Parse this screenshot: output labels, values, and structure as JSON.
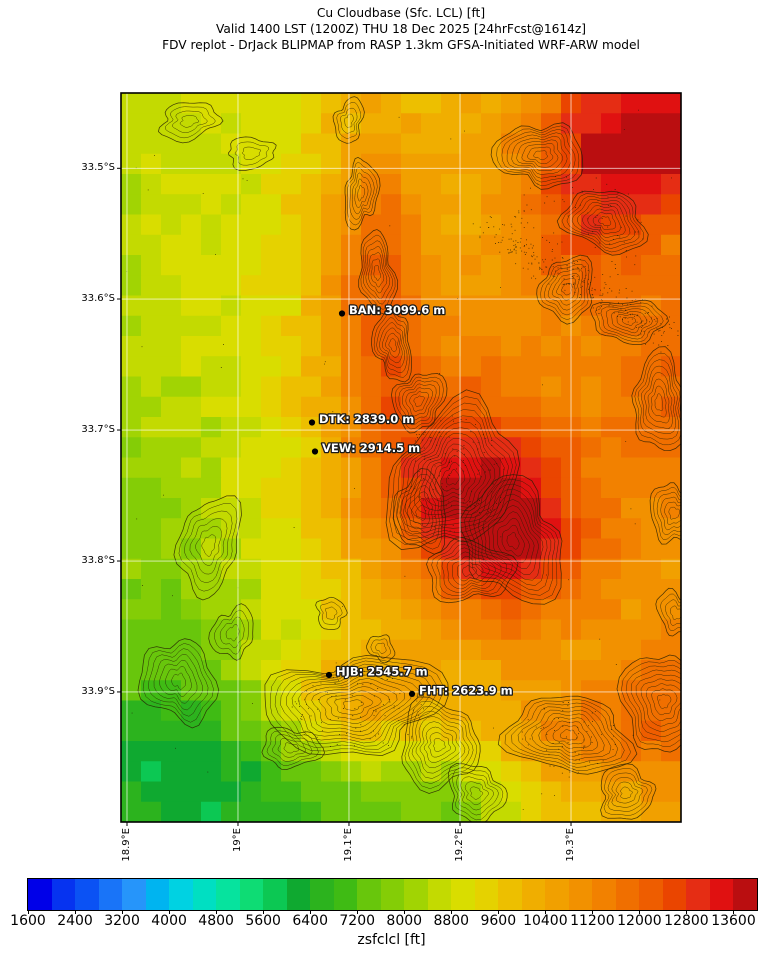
{
  "title": {
    "line1": "Cu Cloudbase (Sfc. LCL) [ft]",
    "line2": "Valid 1400 LST (1200Z) THU 18 Dec 2025 [24hrFcst@1614z]",
    "line3": "FDV replot - DrJack BLIPMAP from RASP 1.3km GFSA-Initiated WRF-ARW model"
  },
  "map": {
    "stations": [
      {
        "code": "BAN",
        "label": "BAN: 3099.6 m",
        "fx": 0.3946,
        "fy": 0.3025
      },
      {
        "code": "DTK",
        "label": "DTK: 2839.0 m",
        "fx": 0.3411,
        "fy": 0.452
      },
      {
        "code": "VEW",
        "label": "VEW: 2914.5 m",
        "fx": 0.3464,
        "fy": 0.4918
      },
      {
        "code": "HJB",
        "label": "HJB: 2545.7 m",
        "fx": 0.3714,
        "fy": 0.7984
      },
      {
        "code": "FHT",
        "label": "FHT: 2623.9 m",
        "fx": 0.5196,
        "fy": 0.8243
      }
    ],
    "lat_ticks": [
      {
        "label": "33.5°S",
        "f": 0.1033
      },
      {
        "label": "33.6°S",
        "f": 0.2826
      },
      {
        "label": "33.7°S",
        "f": 0.4623
      },
      {
        "label": "33.8°S",
        "f": 0.642
      },
      {
        "label": "33.9°S",
        "f": 0.8216
      }
    ],
    "lon_ticks": [
      {
        "label": "18.9°E",
        "f": 0.0107
      },
      {
        "label": "19°E",
        "f": 0.2089
      },
      {
        "label": "19.1°E",
        "f": 0.4071
      },
      {
        "label": "19.2°E",
        "f": 0.6054
      },
      {
        "label": "19.3°E",
        "f": 0.8036
      }
    ]
  },
  "colorbar": {
    "label": "zsfclcl [ft]",
    "min": 1600,
    "max": 14000,
    "step": 400,
    "tick_values": [
      1600,
      2400,
      3200,
      4000,
      4800,
      5600,
      6400,
      7200,
      8000,
      8800,
      9600,
      10400,
      11200,
      12000,
      12800,
      13600
    ],
    "segments": [
      {
        "value": 1600,
        "color": "#0000e8"
      },
      {
        "value": 2000,
        "color": "#0633f0"
      },
      {
        "value": 2400,
        "color": "#0b52f4"
      },
      {
        "value": 2800,
        "color": "#1974f8"
      },
      {
        "value": 3200,
        "color": "#2695fa"
      },
      {
        "value": 3600,
        "color": "#00b4f0"
      },
      {
        "value": 4000,
        "color": "#00d2e2"
      },
      {
        "value": 4400,
        "color": "#00dfc2"
      },
      {
        "value": 4800,
        "color": "#06e39e"
      },
      {
        "value": 5200,
        "color": "#0edc74"
      },
      {
        "value": 5600,
        "color": "#0cc853"
      },
      {
        "value": 6000,
        "color": "#0fa930"
      },
      {
        "value": 6400,
        "color": "#2cb31e",
        "stipple": "s1"
      },
      {
        "value": 6800,
        "color": "#3fbb14"
      },
      {
        "value": 7200,
        "color": "#68c60c"
      },
      {
        "value": 7600,
        "color": "#84cd06"
      },
      {
        "value": 8000,
        "color": "#a1d403"
      },
      {
        "value": 8400,
        "color": "#c3da01"
      },
      {
        "value": 8800,
        "color": "#d9dd00"
      },
      {
        "value": 9200,
        "color": "#e5d200"
      },
      {
        "value": 9600,
        "color": "#edbf00"
      },
      {
        "value": 10000,
        "color": "#f0ae00"
      },
      {
        "value": 10400,
        "color": "#f1a000"
      },
      {
        "value": 10800,
        "color": "#f29100"
      },
      {
        "value": 11200,
        "color": "#f28100"
      },
      {
        "value": 11600,
        "color": "#f06f00"
      },
      {
        "value": 12000,
        "color": "#ee5d00"
      },
      {
        "value": 12400,
        "color": "#ea4500",
        "stipple": "s1"
      },
      {
        "value": 12800,
        "color": "#e52d14",
        "stipple": "s2"
      },
      {
        "value": 13200,
        "color": "#e01111"
      },
      {
        "value": 13600,
        "color": "#ba0e10"
      }
    ]
  }
}
